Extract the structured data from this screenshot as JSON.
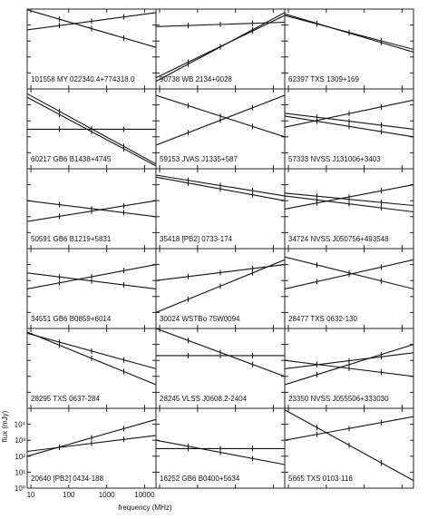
{
  "chart_data": {
    "type": "line",
    "log_x": true,
    "log_y": true,
    "xlabel": "frequency (MHz)",
    "ylabel": "flux (mJy)",
    "xlim": [
      8,
      20000
    ],
    "ylim": [
      1,
      100000
    ],
    "xticks": [
      10,
      100,
      1000,
      10000
    ],
    "yticks": [
      {
        "value": 1,
        "label": "10⁰"
      },
      {
        "value": 10,
        "label": "10¹"
      },
      {
        "value": 100,
        "label": "10²"
      },
      {
        "value": 1000,
        "label": "10³"
      },
      {
        "value": 10000,
        "label": "10⁴"
      }
    ],
    "color": "#111111",
    "panels": [
      {
        "label": "101558 MY 022340.4+774318.0",
        "lines": [
          [
            5000,
            60000
          ],
          [
            90000,
            400
          ]
        ]
      },
      {
        "label": "90738 WB 2134+0028",
        "lines": [
          [
            3,
            60000
          ],
          [
            5,
            40000
          ],
          [
            8000,
            15000
          ]
        ]
      },
      {
        "label": "62397 TXS 1309+169",
        "lines": [
          [
            50000,
            200
          ],
          [
            40000,
            300
          ]
        ]
      },
      {
        "label": "60217 GB6 B1438+4745",
        "lines": [
          [
            30000,
            1.5
          ],
          [
            50000,
            2
          ],
          [
            300,
            300
          ]
        ]
      },
      {
        "label": "59153 JVAS J1335+587",
        "lines": [
          [
            30,
            40000
          ],
          [
            40000,
            100
          ]
        ]
      },
      {
        "label": "57333 NVSS J131006+3403",
        "lines": [
          [
            3000,
            300
          ],
          [
            2000,
            100
          ],
          [
            400,
            20000
          ]
        ]
      },
      {
        "label": "50591 GB6 B1219+5831",
        "lines": [
          [
            1000,
            100
          ],
          [
            50,
            1000
          ]
        ]
      },
      {
        "label": "35418 [PB2] 0733-174",
        "lines": [
          [
            40000,
            2000
          ],
          [
            30000,
            1000
          ]
        ]
      },
      {
        "label": "34724 NVSS J050756+493548",
        "lines": [
          [
            300,
            10000
          ],
          [
            3000,
            500
          ],
          [
            2000,
            200
          ]
        ]
      },
      {
        "label": "34551 GB6 B0859+6014",
        "lines": [
          [
            300,
            10000
          ],
          [
            3000,
            300
          ]
        ]
      },
      {
        "label": "30024 WSTBo 75W0094",
        "lines": [
          [
            10,
            20000
          ],
          [
            1000,
            10000
          ]
        ]
      },
      {
        "label": "28477 TXS 0632-130",
        "lines": [
          [
            30000,
            300
          ],
          [
            300,
            20000
          ]
        ]
      },
      {
        "label": "28295 TXS 0637-284",
        "lines": [
          [
            50000,
            300
          ],
          [
            60000,
            30
          ]
        ]
      },
      {
        "label": "28245 VLSS J0608.2-2404",
        "lines": [
          [
            100000,
            100
          ],
          [
            2000,
            2000
          ]
        ]
      },
      {
        "label": "23350 NVSS J055506+333030",
        "lines": [
          [
            300,
            3000
          ],
          [
            30,
            10000
          ],
          [
            1000,
            100
          ]
        ]
      },
      {
        "label": "20640 [PB2] 0434-188",
        "lines": [
          [
            100,
            20000
          ],
          [
            200,
            2000
          ]
        ]
      },
      {
        "label": "16252 GB6 B0400+5634",
        "lines": [
          [
            1000,
            30
          ],
          [
            300,
            300
          ]
        ]
      },
      {
        "label": "5665 TXS 0103-116",
        "lines": [
          [
            80000,
            3
          ],
          [
            1000,
            30000
          ]
        ]
      }
    ]
  }
}
